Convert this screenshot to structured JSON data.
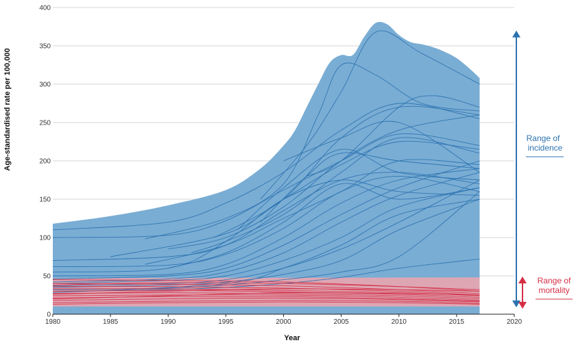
{
  "chart_data": {
    "type": "area",
    "title": "",
    "xlabel": "Year",
    "ylabel": "Age-standardised rate per 100,000",
    "xlim": [
      1980,
      2020
    ],
    "ylim": [
      0,
      400
    ],
    "x_ticks": [
      1980,
      1985,
      1990,
      1995,
      2000,
      2005,
      2010,
      2015,
      2020
    ],
    "y_ticks": [
      0,
      50,
      100,
      150,
      200,
      250,
      300,
      350,
      400
    ],
    "grid": "horizontal",
    "colors": {
      "incidence": "#2c73b0",
      "incidence_band": "#7aadd4",
      "mortality": "#d42e45",
      "mortality_band": "#f0a5ad"
    },
    "incidence_range": {
      "x": [
        1980,
        1985,
        1990,
        1995,
        1998,
        2000,
        2001,
        2002,
        2003,
        2004,
        2005,
        2006,
        2007,
        2008,
        2009,
        2010,
        2011,
        2012,
        2013,
        2014,
        2015,
        2016,
        2017
      ],
      "upper": [
        118,
        128,
        142,
        162,
        190,
        220,
        240,
        270,
        300,
        328,
        338,
        338,
        362,
        380,
        378,
        364,
        355,
        352,
        348,
        342,
        334,
        322,
        308
      ],
      "lower": [
        0,
        0,
        0,
        0,
        0,
        0,
        0,
        0,
        0,
        0,
        0,
        0,
        0,
        0,
        0,
        0,
        0,
        0,
        0,
        0,
        0,
        0,
        0
      ]
    },
    "mortality_range": {
      "x": [
        1980,
        2017
      ],
      "upper": [
        47,
        48
      ],
      "lower": [
        10,
        10
      ]
    },
    "incidence_series": [
      {
        "x": [
          1980,
          1990,
          1995,
          2000,
          2005,
          2010,
          2017
        ],
        "values": [
          110,
          120,
          145,
          185,
          240,
          275,
          255
        ]
      },
      {
        "x": [
          1980,
          1990,
          1995,
          2000,
          2005,
          2010,
          2017
        ],
        "values": [
          100,
          103,
          122,
          162,
          200,
          235,
          220
        ]
      },
      {
        "x": [
          1988,
          1995,
          2000,
          2003,
          2005,
          2008,
          2012,
          2017
        ],
        "values": [
          98,
          125,
          170,
          260,
          325,
          312,
          275,
          265
        ]
      },
      {
        "x": [
          1998,
          2002,
          2005,
          2008,
          2012,
          2017
        ],
        "values": [
          150,
          220,
          290,
          368,
          340,
          300
        ]
      },
      {
        "x": [
          1980,
          1990,
          1995,
          2000,
          2005,
          2010,
          2017
        ],
        "values": [
          70,
          75,
          90,
          135,
          175,
          185,
          170
        ]
      },
      {
        "x": [
          1980,
          1990,
          1995,
          2000,
          2005,
          2010,
          2017
        ],
        "values": [
          62,
          64,
          78,
          112,
          160,
          180,
          160
        ]
      },
      {
        "x": [
          1980,
          1990,
          1995,
          2000,
          2005,
          2010,
          2017
        ],
        "values": [
          50,
          52,
          65,
          100,
          145,
          175,
          190
        ]
      },
      {
        "x": [
          1980,
          1990,
          1995,
          2000,
          2005,
          2010,
          2017
        ],
        "values": [
          46,
          50,
          60,
          90,
          130,
          165,
          200
        ]
      },
      {
        "x": [
          1980,
          1990,
          1995,
          2000,
          2005,
          2010,
          2017
        ],
        "values": [
          42,
          46,
          55,
          80,
          120,
          155,
          185
        ]
      },
      {
        "x": [
          1980,
          1990,
          1995,
          2000,
          2005,
          2010,
          2017
        ],
        "values": [
          40,
          44,
          50,
          70,
          100,
          140,
          165
        ]
      },
      {
        "x": [
          1980,
          1990,
          1995,
          2000,
          2005,
          2010,
          2017
        ],
        "values": [
          37,
          40,
          45,
          60,
          85,
          120,
          175
        ]
      },
      {
        "x": [
          1980,
          1990,
          1995,
          2000,
          2005,
          2010,
          2017
        ],
        "values": [
          35,
          38,
          42,
          52,
          70,
          110,
          150
        ]
      },
      {
        "x": [
          1980,
          1990,
          1995,
          2000,
          2005,
          2010,
          2017
        ],
        "values": [
          32,
          34,
          38,
          45,
          55,
          75,
          160
        ]
      },
      {
        "x": [
          1980,
          1990,
          1995,
          2000,
          2005,
          2010,
          2017
        ],
        "values": [
          30,
          32,
          35,
          40,
          48,
          60,
          72
        ]
      },
      {
        "x": [
          1990,
          1995,
          2000,
          2005,
          2010,
          2017
        ],
        "values": [
          85,
          100,
          140,
          200,
          240,
          260
        ]
      },
      {
        "x": [
          1992,
          1995,
          2000,
          2005,
          2010,
          2017
        ],
        "values": [
          80,
          95,
          130,
          185,
          230,
          210
        ]
      },
      {
        "x": [
          1994,
          2000,
          2005,
          2010,
          2017
        ],
        "values": [
          100,
          150,
          230,
          270,
          260
        ]
      },
      {
        "x": [
          1996,
          2000,
          2005,
          2010,
          2017
        ],
        "values": [
          110,
          165,
          215,
          185,
          175
        ]
      },
      {
        "x": [
          1998,
          2002,
          2005,
          2010,
          2017
        ],
        "values": [
          120,
          180,
          210,
          200,
          190
        ]
      },
      {
        "x": [
          1985,
          1995,
          2000,
          2005,
          2010,
          2017
        ],
        "values": [
          75,
          105,
          150,
          195,
          225,
          215
        ]
      },
      {
        "x": [
          1980,
          1990,
          1995,
          2000,
          2005,
          2010,
          2017
        ],
        "values": [
          55,
          60,
          95,
          150,
          175,
          160,
          155
        ]
      },
      {
        "x": [
          1988,
          1995,
          2000,
          2005,
          2010,
          2017
        ],
        "values": [
          65,
          90,
          125,
          160,
          200,
          195
        ]
      },
      {
        "x": [
          1990,
          1995,
          2000,
          2005,
          2010,
          2017
        ],
        "values": [
          60,
          80,
          120,
          170,
          150,
          165
        ]
      },
      {
        "x": [
          2000,
          2005,
          2010,
          2017
        ],
        "values": [
          200,
          230,
          250,
          185
        ]
      },
      {
        "x": [
          2002,
          2005,
          2010,
          2013,
          2017
        ],
        "values": [
          180,
          200,
          270,
          285,
          270
        ]
      },
      {
        "x": [
          1980,
          1995,
          2000,
          2005,
          2010,
          2017
        ],
        "values": [
          28,
          40,
          60,
          90,
          130,
          150
        ]
      }
    ],
    "mortality_series": [
      {
        "x": [
          1980,
          1990,
          2000,
          2010,
          2017
        ],
        "values": [
          45,
          44,
          42,
          36,
          30
        ]
      },
      {
        "x": [
          1980,
          1990,
          2000,
          2010,
          2017
        ],
        "values": [
          40,
          39,
          37,
          32,
          27
        ]
      },
      {
        "x": [
          1980,
          1990,
          2000,
          2010,
          2017
        ],
        "values": [
          36,
          36,
          34,
          30,
          25
        ]
      },
      {
        "x": [
          1980,
          1990,
          2000,
          2010,
          2017
        ],
        "values": [
          33,
          33,
          31,
          28,
          24
        ]
      },
      {
        "x": [
          1980,
          1990,
          2000,
          2010,
          2017
        ],
        "values": [
          30,
          31,
          29,
          26,
          22
        ]
      },
      {
        "x": [
          1980,
          1990,
          2000,
          2010,
          2017
        ],
        "values": [
          27,
          28,
          27,
          24,
          20
        ]
      },
      {
        "x": [
          1980,
          1990,
          2000,
          2010,
          2017
        ],
        "values": [
          24,
          25,
          25,
          22,
          18
        ]
      },
      {
        "x": [
          1980,
          1990,
          2000,
          2010,
          2017
        ],
        "values": [
          21,
          23,
          23,
          20,
          17
        ]
      },
      {
        "x": [
          1980,
          1990,
          2000,
          2010,
          2017
        ],
        "values": [
          18,
          20,
          21,
          19,
          16
        ]
      },
      {
        "x": [
          1980,
          1990,
          2000,
          2010,
          2017
        ],
        "values": [
          15,
          17,
          18,
          17,
          14
        ]
      },
      {
        "x": [
          1980,
          1990,
          2000,
          2010,
          2017
        ],
        "values": [
          13,
          15,
          16,
          15,
          13
        ]
      },
      {
        "x": [
          1980,
          1990,
          2000,
          2010,
          2017
        ],
        "values": [
          26,
          30,
          33,
          32,
          30
        ]
      },
      {
        "x": [
          1980,
          1990,
          2000,
          2010,
          2017
        ],
        "values": [
          20,
          24,
          28,
          27,
          25
        ]
      },
      {
        "x": [
          1980,
          1990,
          2000,
          2010,
          2017
        ],
        "values": [
          38,
          41,
          40,
          36,
          32
        ]
      }
    ],
    "annotations": {
      "incidence": {
        "line1": "Range of",
        "line2": "incidence",
        "range": [
          0,
          370
        ]
      },
      "mortality": {
        "line1": "Range of",
        "line2": "mortality",
        "range": [
          0,
          50
        ]
      }
    }
  }
}
